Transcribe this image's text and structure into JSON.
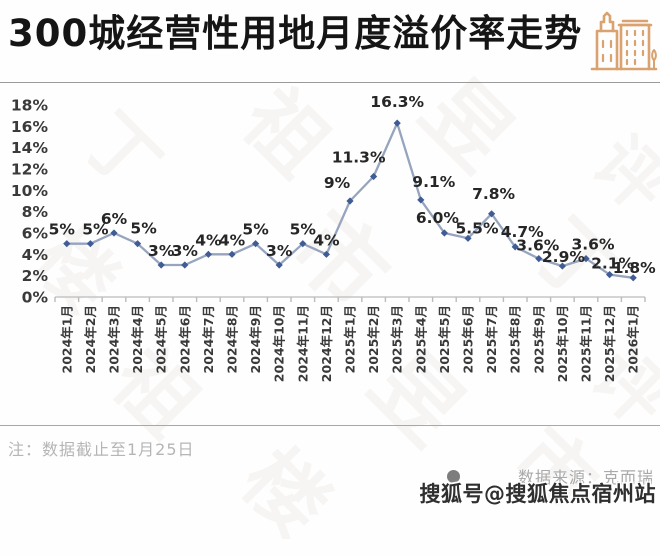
{
  "header": {
    "title": "300城经营性用地月度溢价率走势",
    "icon": "buildings-icon",
    "icon_color": "#D9A26E"
  },
  "chart_data": {
    "type": "line",
    "title": "300城经营性用地月度溢价率走势",
    "categories": [
      "2024年1月",
      "2024年2月",
      "2024年3月",
      "2024年4月",
      "2024年5月",
      "2024年6月",
      "2024年7月",
      "2024年8月",
      "2024年9月",
      "2024年10月",
      "2024年11月",
      "2024年12月",
      "2025年1月",
      "2025年2月",
      "2025年3月",
      "2025年4月",
      "2025年5月",
      "2025年6月",
      "2025年7月",
      "2025年8月",
      "2025年9月",
      "2025年10月",
      "2025年11月",
      "2025年12月",
      "2026年1月"
    ],
    "series": [
      {
        "name": "月度溢价率",
        "values": [
          5,
          5,
          6,
          5,
          3,
          3,
          4,
          4,
          5,
          3,
          5,
          4,
          9,
          11.3,
          16.3,
          9.1,
          6.0,
          5.5,
          7.8,
          4.7,
          3.6,
          2.9,
          3.6,
          2.1,
          1.8
        ],
        "labels": [
          "5%",
          "5%",
          "6%",
          "5%",
          "3%",
          "3%",
          "4%",
          "4%",
          "5%",
          "3%",
          "5%",
          "4%",
          "9%",
          "11.3%",
          "16.3%",
          "9.1%",
          "6.0%",
          "5.5%",
          "7.8%",
          "4.7%",
          "3.6%",
          "2.9%",
          "3.6%",
          "2.1%",
          "1.8%"
        ]
      }
    ],
    "xlabel": "",
    "ylabel": "",
    "ylim": [
      0,
      18
    ],
    "ytick_labels": [
      "0%",
      "2%",
      "4%",
      "6%",
      "8%",
      "10%",
      "12%",
      "14%",
      "16%",
      "18%"
    ],
    "grid": false,
    "legend_position": "none",
    "line_color": "#96A4BE",
    "marker_color": "#3F5C94",
    "label_color": "#262626",
    "axis_color": "#c5c5c5",
    "tick_text_color": "#3a3a3a"
  },
  "footer": {
    "note": "注：数据截止至1月25日",
    "source_bullet": "circle-bullet-icon",
    "source": "数据来源：克而瑞",
    "watermark": "搜狐号@搜狐焦点宿州站"
  },
  "background_watermark": {
    "text": "丁祖昱评楼市"
  }
}
